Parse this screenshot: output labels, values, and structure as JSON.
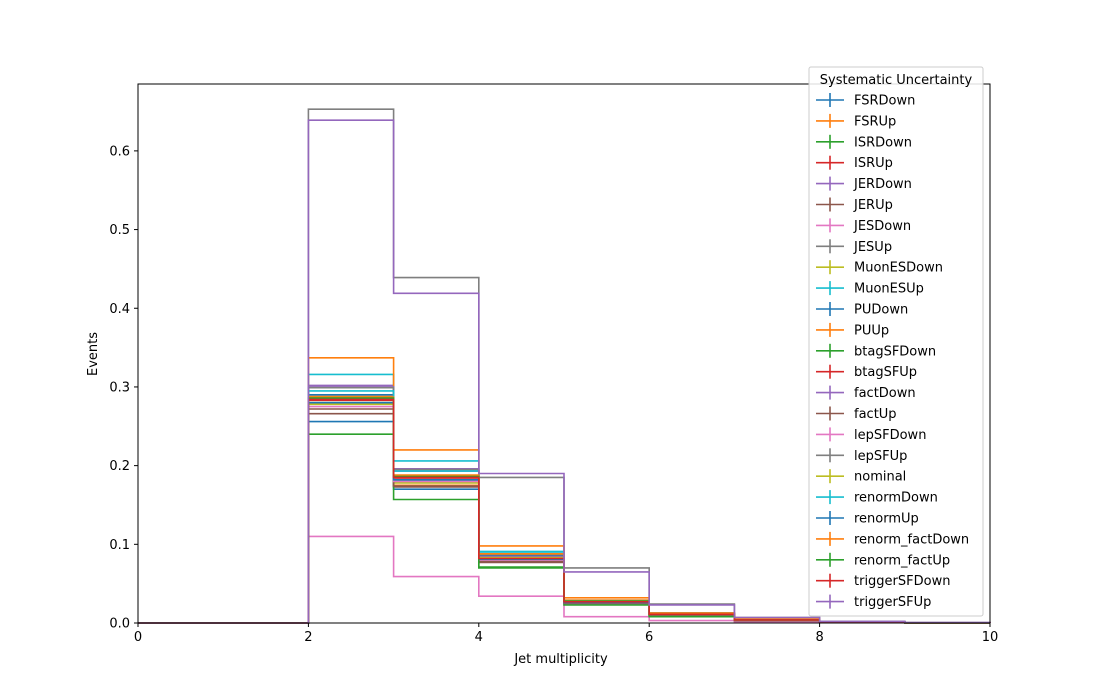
{
  "chart_data": {
    "type": "line",
    "subtype": "step-histogram",
    "title": "",
    "xlabel": "Jet multiplicity",
    "ylabel": "Events",
    "xlim": [
      0,
      10
    ],
    "ylim": [
      0,
      0.685
    ],
    "xticks": [
      "0",
      "2",
      "4",
      "6",
      "8",
      "10"
    ],
    "yticks": [
      "0.0",
      "0.1",
      "0.2",
      "0.3",
      "0.4",
      "0.5",
      "0.6"
    ],
    "bin_edges": [
      0,
      1,
      2,
      3,
      4,
      5,
      6,
      7,
      8,
      9,
      10
    ],
    "legend": {
      "title": "Systematic Uncertainty",
      "placement": "top-right"
    },
    "grid": false,
    "series": [
      {
        "name": "FSRDown",
        "color": "#1f77b4",
        "values": [
          0,
          0,
          0.256,
          0.17,
          0.081,
          0.025,
          0.01,
          0.003,
          0.001,
          0.0003
        ]
      },
      {
        "name": "FSRUp",
        "color": "#ff7f0e",
        "values": [
          0,
          0,
          0.288,
          0.175,
          0.08,
          0.026,
          0.011,
          0.004,
          0.001,
          0.0003
        ]
      },
      {
        "name": "ISRDown",
        "color": "#2ca02c",
        "values": [
          0,
          0,
          0.28,
          0.18,
          0.082,
          0.026,
          0.011,
          0.004,
          0.001,
          0.0003
        ]
      },
      {
        "name": "ISRUp",
        "color": "#d62728",
        "values": [
          0,
          0,
          0.283,
          0.183,
          0.083,
          0.027,
          0.011,
          0.004,
          0.001,
          0.0003
        ]
      },
      {
        "name": "JERDown",
        "color": "#9467bd",
        "values": [
          0,
          0,
          0.302,
          0.193,
          0.085,
          0.028,
          0.012,
          0.004,
          0.001,
          0.0003
        ]
      },
      {
        "name": "JERUp",
        "color": "#8c564b",
        "values": [
          0,
          0,
          0.272,
          0.173,
          0.078,
          0.025,
          0.01,
          0.003,
          0.001,
          0.0003
        ]
      },
      {
        "name": "JESDown",
        "color": "#e377c2",
        "values": [
          0,
          0,
          0.11,
          0.059,
          0.034,
          0.008,
          0.003,
          0.001,
          0.0005,
          0.0002
        ]
      },
      {
        "name": "JESUp",
        "color": "#7f7f7f",
        "values": [
          0,
          0,
          0.653,
          0.439,
          0.185,
          0.07,
          0.024,
          0.007,
          0.002,
          0.0005
        ]
      },
      {
        "name": "MuonESDown",
        "color": "#bcbd22",
        "values": [
          0,
          0,
          0.278,
          0.178,
          0.081,
          0.026,
          0.011,
          0.004,
          0.001,
          0.0003
        ]
      },
      {
        "name": "MuonESUp",
        "color": "#17becf",
        "values": [
          0,
          0,
          0.316,
          0.206,
          0.091,
          0.029,
          0.012,
          0.004,
          0.001,
          0.0003
        ]
      },
      {
        "name": "PUDown",
        "color": "#1f77b4",
        "values": [
          0,
          0,
          0.29,
          0.182,
          0.086,
          0.027,
          0.011,
          0.004,
          0.001,
          0.0003
        ]
      },
      {
        "name": "PUUp",
        "color": "#ff7f0e",
        "values": [
          0,
          0,
          0.337,
          0.22,
          0.098,
          0.032,
          0.013,
          0.005,
          0.001,
          0.0003
        ]
      },
      {
        "name": "btagSFDown",
        "color": "#2ca02c",
        "values": [
          0,
          0,
          0.24,
          0.157,
          0.07,
          0.023,
          0.009,
          0.003,
          0.001,
          0.0003
        ]
      },
      {
        "name": "btagSFUp",
        "color": "#d62728",
        "values": [
          0,
          0,
          0.285,
          0.186,
          0.083,
          0.027,
          0.011,
          0.004,
          0.001,
          0.0003
        ]
      },
      {
        "name": "factDown",
        "color": "#9467bd",
        "values": [
          0,
          0,
          0.3,
          0.196,
          0.087,
          0.028,
          0.012,
          0.004,
          0.001,
          0.0003
        ]
      },
      {
        "name": "factUp",
        "color": "#8c564b",
        "values": [
          0,
          0,
          0.266,
          0.174,
          0.077,
          0.025,
          0.01,
          0.003,
          0.001,
          0.0003
        ]
      },
      {
        "name": "lepSFDown",
        "color": "#e377c2",
        "values": [
          0,
          0,
          0.275,
          0.18,
          0.08,
          0.026,
          0.011,
          0.004,
          0.001,
          0.0003
        ]
      },
      {
        "name": "lepSFUp",
        "color": "#7f7f7f",
        "values": [
          0,
          0,
          0.299,
          0.195,
          0.087,
          0.028,
          0.012,
          0.004,
          0.001,
          0.0003
        ]
      },
      {
        "name": "nominal",
        "color": "#bcbd22",
        "values": [
          0,
          0,
          0.287,
          0.187,
          0.083,
          0.027,
          0.011,
          0.004,
          0.001,
          0.0003
        ]
      },
      {
        "name": "renormDown",
        "color": "#17becf",
        "values": [
          0,
          0,
          0.295,
          0.193,
          0.089,
          0.028,
          0.012,
          0.004,
          0.001,
          0.0003
        ]
      },
      {
        "name": "renormUp",
        "color": "#1f77b4",
        "values": [
          0,
          0,
          0.28,
          0.182,
          0.081,
          0.026,
          0.011,
          0.004,
          0.001,
          0.0003
        ]
      },
      {
        "name": "renorm_factDown",
        "color": "#ff7f0e",
        "values": [
          0,
          0,
          0.287,
          0.188,
          0.088,
          0.029,
          0.012,
          0.004,
          0.001,
          0.0003
        ]
      },
      {
        "name": "renorm_factUp",
        "color": "#2ca02c",
        "values": [
          0,
          0,
          0.286,
          0.186,
          0.071,
          0.028,
          0.008,
          0.004,
          0.001,
          0.0003
        ]
      },
      {
        "name": "triggerSFDown",
        "color": "#d62728",
        "values": [
          0,
          0,
          0.284,
          0.185,
          0.082,
          0.027,
          0.011,
          0.004,
          0.001,
          0.0003
        ]
      },
      {
        "name": "triggerSFUp",
        "color": "#9467bd",
        "values": [
          0,
          0,
          0.639,
          0.419,
          0.19,
          0.065,
          0.023,
          0.007,
          0.002,
          0.0005
        ]
      }
    ]
  }
}
